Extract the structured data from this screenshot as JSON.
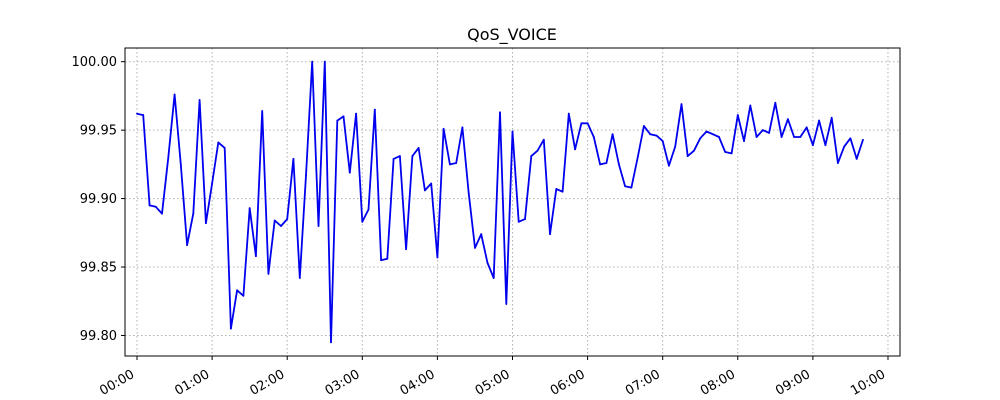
{
  "chart_data": {
    "type": "line",
    "title": "QoS_VOICE",
    "xlabel": "",
    "ylabel": "",
    "grid": true,
    "grid_style": "dotted",
    "line_color": "#0000ee",
    "x_tick_labels": [
      "00:00",
      "01:00",
      "02:00",
      "03:00",
      "04:00",
      "05:00",
      "06:00",
      "07:00",
      "08:00",
      "09:00",
      "10:00"
    ],
    "y_tick_labels": [
      "99.80",
      "99.85",
      "99.90",
      "99.95",
      "100.00"
    ],
    "ylim": [
      99.785,
      100.01
    ],
    "xlim_hours": [
      -0.16,
      10.16
    ],
    "series": [
      {
        "x_hours": [
          0.0,
          0.083,
          0.167,
          0.25,
          0.333,
          0.417,
          0.5,
          0.583,
          0.667,
          0.75,
          0.833,
          0.917,
          1.0,
          1.083,
          1.167,
          1.25,
          1.333,
          1.417,
          1.5,
          1.583,
          1.667,
          1.75,
          1.833,
          1.917,
          2.0,
          2.083,
          2.167,
          2.25,
          2.333,
          2.417,
          2.5,
          2.583,
          2.667,
          2.75,
          2.833,
          2.917,
          3.0,
          3.083,
          3.167,
          3.25,
          3.333,
          3.417,
          3.5,
          3.583,
          3.667,
          3.75,
          3.833,
          3.917,
          4.0,
          4.083,
          4.167,
          4.25,
          4.333,
          4.417,
          4.5,
          4.583,
          4.667,
          4.75,
          4.833,
          4.917,
          5.0,
          5.083,
          5.167,
          5.25,
          5.333,
          5.417,
          5.5,
          5.583,
          5.667,
          5.75,
          5.833,
          5.917,
          6.0,
          6.083,
          6.167,
          6.25,
          6.333,
          6.417,
          6.5,
          6.583,
          6.667,
          6.75,
          6.833,
          6.917,
          7.0,
          7.083,
          7.167,
          7.25,
          7.333,
          7.417,
          7.5,
          7.583,
          7.667,
          7.75,
          7.833,
          7.917,
          8.0,
          8.083,
          8.167,
          8.25,
          8.333,
          8.417,
          8.5,
          8.583,
          8.667,
          8.75,
          8.833,
          8.917,
          9.0,
          9.083,
          9.167,
          9.25,
          9.333,
          9.417,
          9.5,
          9.583,
          9.667
        ],
        "values": [
          99.962,
          99.961,
          99.895,
          99.894,
          99.889,
          99.93,
          99.976,
          99.925,
          99.866,
          99.889,
          99.972,
          99.882,
          99.911,
          99.941,
          99.937,
          99.805,
          99.833,
          99.829,
          99.893,
          99.858,
          99.964,
          99.845,
          99.884,
          99.88,
          99.885,
          99.929,
          99.842,
          99.917,
          100.0,
          99.88,
          100.0,
          99.795,
          99.957,
          99.96,
          99.919,
          99.962,
          99.883,
          99.892,
          99.965,
          99.855,
          99.856,
          99.929,
          99.931,
          99.863,
          99.931,
          99.937,
          99.906,
          99.911,
          99.857,
          99.951,
          99.925,
          99.926,
          99.952,
          99.904,
          99.864,
          99.874,
          99.853,
          99.842,
          99.963,
          99.823,
          99.949,
          99.883,
          99.885,
          99.931,
          99.935,
          99.943,
          99.874,
          99.907,
          99.905,
          99.962,
          99.936,
          99.955,
          99.955,
          99.945,
          99.925,
          99.926,
          99.947,
          99.925,
          99.909,
          99.908,
          99.93,
          99.953,
          99.947,
          99.946,
          99.942,
          99.924,
          99.938,
          99.969,
          99.931,
          99.935,
          99.944,
          99.949,
          99.947,
          99.945,
          99.934,
          99.933,
          99.961,
          99.942,
          99.968,
          99.945,
          99.95,
          99.948,
          99.97,
          99.945,
          99.958,
          99.945,
          99.945,
          99.952,
          99.939,
          99.957,
          99.939,
          99.959,
          99.926,
          99.938,
          99.944,
          99.929,
          99.943
        ]
      }
    ]
  }
}
